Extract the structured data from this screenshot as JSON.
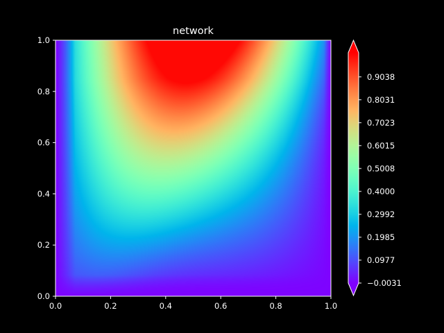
{
  "chart_data": {
    "type": "heatmap",
    "title": "network",
    "xlabel": "",
    "ylabel": "",
    "xlim": [
      0.0,
      1.0
    ],
    "ylim": [
      0.0,
      1.0
    ],
    "x_ticks": [
      "0.0",
      "0.2",
      "0.4",
      "0.6",
      "0.8",
      "1.0"
    ],
    "y_ticks": [
      "0.0",
      "0.2",
      "0.4",
      "0.6",
      "0.8",
      "1.0"
    ],
    "colormap": "rainbow",
    "value_range": [
      -0.0031,
      1.01
    ],
    "colorbar": {
      "ticks": [
        "0.9038",
        "0.8031",
        "0.7023",
        "0.6015",
        "0.5008",
        "0.4000",
        "0.2992",
        "0.1985",
        "0.0977",
        "-0.0031"
      ],
      "tick_values": [
        0.9038,
        0.8031,
        0.7023,
        0.6015,
        0.5008,
        0.4,
        0.2992,
        0.1985,
        0.0977,
        -0.0031
      ],
      "extend": "both"
    },
    "grid": false,
    "field": {
      "description_of_values": "value is 0 on the x=0 and x=1 edges and at y=0, rising to a maximum of about 1.0 near the top edge around x=0.5",
      "samples": [
        {
          "x": 0.5,
          "y": 0.97,
          "value": 1.0
        },
        {
          "x": 0.3,
          "y": 0.9,
          "value": 0.75
        },
        {
          "x": 0.2,
          "y": 0.6,
          "value": 0.5
        },
        {
          "x": 0.6,
          "y": 0.5,
          "value": 0.3
        },
        {
          "x": 0.8,
          "y": 0.2,
          "value": 0.0
        }
      ]
    }
  },
  "colors": {
    "background": "#000000",
    "foreground": "#ffffff",
    "high": "#ff0000",
    "low": "#8000ff"
  }
}
